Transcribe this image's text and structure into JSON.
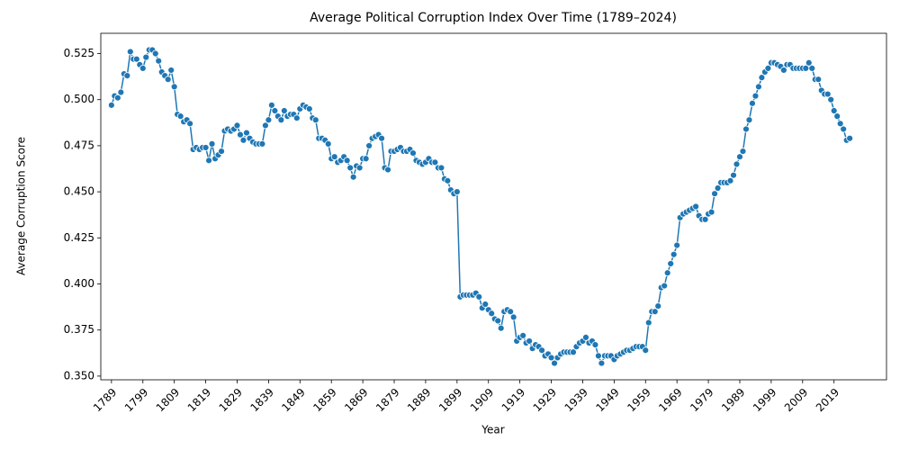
{
  "chart_data": {
    "type": "line",
    "title": "Average Political Corruption Index Over Time (1789–2024)",
    "x_label": "Year",
    "y_label": "Average Corruption Score",
    "color": "#1f77b4",
    "marker": true,
    "x": [
      1789,
      1790,
      1791,
      1792,
      1793,
      1794,
      1795,
      1796,
      1797,
      1798,
      1799,
      1800,
      1801,
      1802,
      1803,
      1804,
      1805,
      1806,
      1807,
      1808,
      1809,
      1810,
      1811,
      1812,
      1813,
      1814,
      1815,
      1816,
      1817,
      1818,
      1819,
      1820,
      1821,
      1822,
      1823,
      1824,
      1825,
      1826,
      1827,
      1828,
      1829,
      1830,
      1831,
      1832,
      1833,
      1834,
      1835,
      1836,
      1837,
      1838,
      1839,
      1840,
      1841,
      1842,
      1843,
      1844,
      1845,
      1846,
      1847,
      1848,
      1849,
      1850,
      1851,
      1852,
      1853,
      1854,
      1855,
      1856,
      1857,
      1858,
      1859,
      1860,
      1861,
      1862,
      1863,
      1864,
      1865,
      1866,
      1867,
      1868,
      1869,
      1870,
      1871,
      1872,
      1873,
      1874,
      1875,
      1876,
      1877,
      1878,
      1879,
      1880,
      1881,
      1882,
      1883,
      1884,
      1885,
      1886,
      1887,
      1888,
      1889,
      1890,
      1891,
      1892,
      1893,
      1894,
      1895,
      1896,
      1897,
      1898,
      1899,
      1900,
      1901,
      1902,
      1903,
      1904,
      1905,
      1906,
      1907,
      1908,
      1909,
      1910,
      1911,
      1912,
      1913,
      1914,
      1915,
      1916,
      1917,
      1918,
      1919,
      1920,
      1921,
      1922,
      1923,
      1924,
      1925,
      1926,
      1927,
      1928,
      1929,
      1930,
      1931,
      1932,
      1933,
      1934,
      1935,
      1936,
      1937,
      1938,
      1939,
      1940,
      1941,
      1942,
      1943,
      1944,
      1945,
      1946,
      1947,
      1948,
      1949,
      1950,
      1951,
      1952,
      1953,
      1954,
      1955,
      1956,
      1957,
      1958,
      1959,
      1960,
      1961,
      1962,
      1963,
      1964,
      1965,
      1966,
      1967,
      1968,
      1969,
      1970,
      1971,
      1972,
      1973,
      1974,
      1975,
      1976,
      1977,
      1978,
      1979,
      1980,
      1981,
      1982,
      1983,
      1984,
      1985,
      1986,
      1987,
      1988,
      1989,
      1990,
      1991,
      1992,
      1993,
      1994,
      1995,
      1996,
      1997,
      1998,
      1999,
      2000,
      2001,
      2002,
      2003,
      2004,
      2005,
      2006,
      2007,
      2008,
      2009,
      2010,
      2011,
      2012,
      2013,
      2014,
      2015,
      2016,
      2017,
      2018,
      2019,
      2020,
      2021,
      2022,
      2023,
      2024
    ],
    "values": [
      0.497,
      0.502,
      0.501,
      0.504,
      0.514,
      0.513,
      0.526,
      0.522,
      0.522,
      0.519,
      0.517,
      0.523,
      0.527,
      0.527,
      0.525,
      0.521,
      0.515,
      0.513,
      0.511,
      0.516,
      0.507,
      0.492,
      0.491,
      0.488,
      0.489,
      0.487,
      0.473,
      0.474,
      0.473,
      0.474,
      0.474,
      0.467,
      0.476,
      0.468,
      0.47,
      0.472,
      0.483,
      0.484,
      0.483,
      0.484,
      0.486,
      0.481,
      0.478,
      0.482,
      0.479,
      0.477,
      0.476,
      0.476,
      0.476,
      0.486,
      0.489,
      0.497,
      0.494,
      0.491,
      0.489,
      0.494,
      0.491,
      0.492,
      0.492,
      0.49,
      0.495,
      0.497,
      0.496,
      0.495,
      0.49,
      0.489,
      0.479,
      0.479,
      0.478,
      0.476,
      0.468,
      0.469,
      0.466,
      0.467,
      0.469,
      0.467,
      0.463,
      0.458,
      0.464,
      0.463,
      0.468,
      0.468,
      0.475,
      0.479,
      0.48,
      0.481,
      0.479,
      0.463,
      0.462,
      0.472,
      0.472,
      0.473,
      0.474,
      0.472,
      0.472,
      0.473,
      0.471,
      0.467,
      0.466,
      0.465,
      0.466,
      0.468,
      0.466,
      0.466,
      0.463,
      0.463,
      0.457,
      0.456,
      0.451,
      0.449,
      0.45,
      0.393,
      0.394,
      0.394,
      0.394,
      0.394,
      0.395,
      0.393,
      0.387,
      0.389,
      0.386,
      0.384,
      0.381,
      0.38,
      0.376,
      0.385,
      0.386,
      0.385,
      0.382,
      0.369,
      0.371,
      0.372,
      0.368,
      0.369,
      0.365,
      0.367,
      0.366,
      0.364,
      0.361,
      0.362,
      0.36,
      0.357,
      0.36,
      0.362,
      0.363,
      0.363,
      0.363,
      0.363,
      0.366,
      0.368,
      0.369,
      0.371,
      0.368,
      0.369,
      0.367,
      0.361,
      0.357,
      0.361,
      0.361,
      0.361,
      0.359,
      0.361,
      0.362,
      0.363,
      0.364,
      0.364,
      0.365,
      0.366,
      0.366,
      0.366,
      0.364,
      0.379,
      0.385,
      0.385,
      0.388,
      0.398,
      0.399,
      0.406,
      0.411,
      0.416,
      0.421,
      0.436,
      0.438,
      0.439,
      0.44,
      0.441,
      0.442,
      0.437,
      0.435,
      0.435,
      0.438,
      0.439,
      0.449,
      0.452,
      0.455,
      0.455,
      0.455,
      0.456,
      0.459,
      0.465,
      0.469,
      0.472,
      0.484,
      0.489,
      0.498,
      0.502,
      0.507,
      0.512,
      0.515,
      0.517,
      0.52,
      0.52,
      0.519,
      0.518,
      0.516,
      0.519,
      0.519,
      0.517,
      0.517,
      0.517,
      0.517,
      0.517,
      0.52,
      0.517,
      0.511,
      0.511,
      0.505,
      0.503,
      0.503,
      0.5,
      0.494,
      0.491,
      0.487,
      0.484,
      0.478,
      0.479
    ],
    "xlim": [
      1785.6,
      2035.7
    ],
    "xticks": [
      1789,
      1799,
      1809,
      1819,
      1829,
      1839,
      1849,
      1859,
      1869,
      1879,
      1889,
      1899,
      1909,
      1919,
      1929,
      1939,
      1949,
      1959,
      1969,
      1979,
      1989,
      1999,
      2009,
      2019
    ],
    "ylim": [
      0.348,
      0.536
    ],
    "yticks": [
      {
        "value": 0.35,
        "label": "0.350"
      },
      0.375,
      {
        "value": 0.4,
        "label": "0.400"
      },
      0.425,
      {
        "value": 0.45,
        "label": "0.450"
      },
      0.475,
      {
        "value": 0.5,
        "label": "0.500"
      },
      0.525
    ]
  }
}
